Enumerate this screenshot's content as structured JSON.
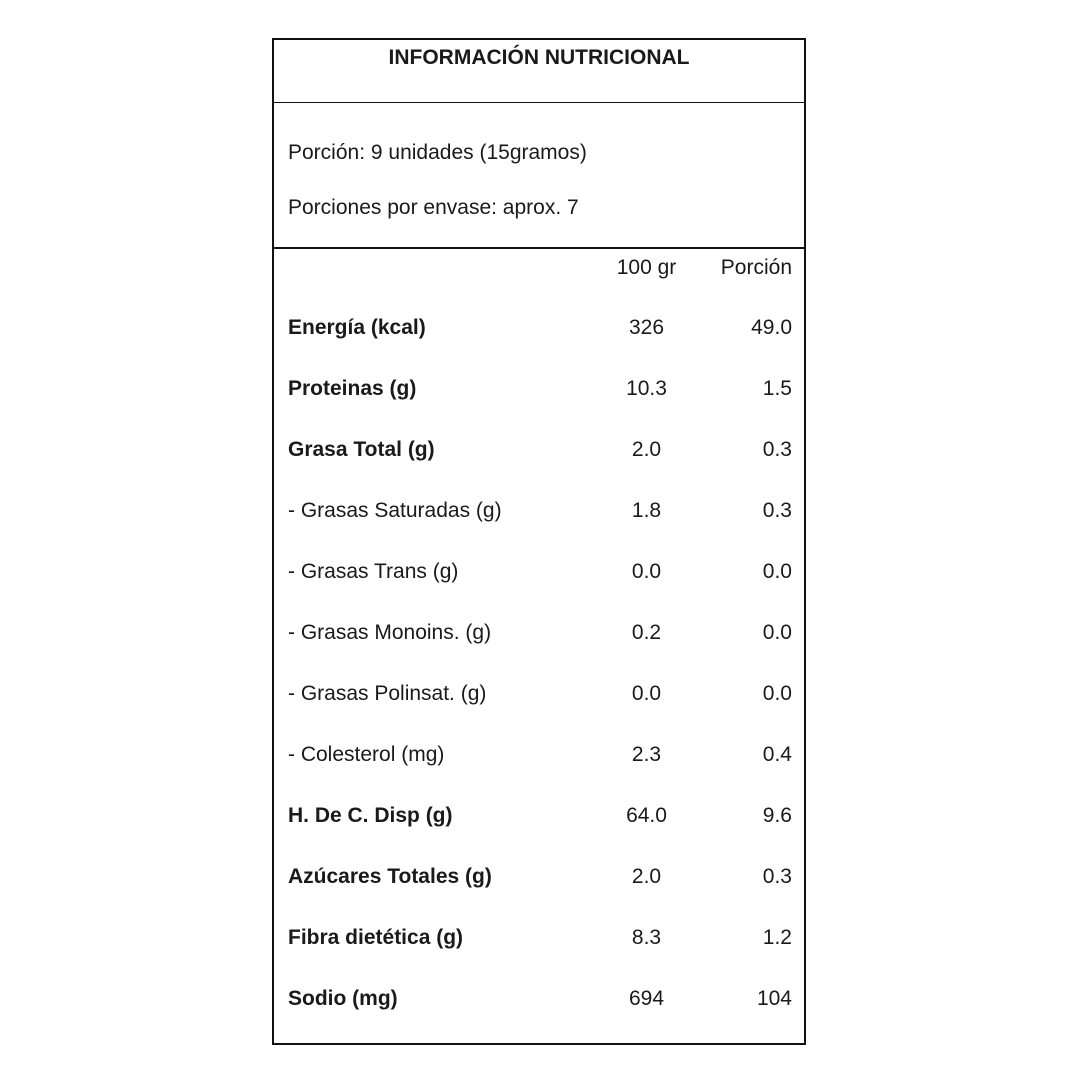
{
  "title": "INFORMACIÓN NUTRICIONAL",
  "serving": "Porción: 9 unidades (15gramos)",
  "servings_per_container": "Porciones por envase: aprox. 7",
  "columns": [
    "100 gr",
    "Porción"
  ],
  "rows": [
    {
      "name": "Energía (kcal)",
      "bold": true,
      "per100": "326",
      "portion": "49.0"
    },
    {
      "name": "Proteinas (g)",
      "bold": true,
      "per100": "10.3",
      "portion": "1.5"
    },
    {
      "name": "Grasa Total (g)",
      "bold": true,
      "per100": "2.0",
      "portion": "0.3"
    },
    {
      "name": "- Grasas Saturadas (g)",
      "bold": false,
      "per100": "1.8",
      "portion": "0.3"
    },
    {
      "name": "- Grasas Trans (g)",
      "bold": false,
      "per100": "0.0",
      "portion": "0.0"
    },
    {
      "name": "- Grasas Monoins. (g)",
      "bold": false,
      "per100": "0.2",
      "portion": "0.0"
    },
    {
      "name": "- Grasas Polinsat. (g)",
      "bold": false,
      "per100": "0.0",
      "portion": "0.0"
    },
    {
      "name": "- Colesterol (mg)",
      "bold": false,
      "per100": "2.3",
      "portion": "0.4"
    },
    {
      "name": "H. De C. Disp (g)",
      "bold": true,
      "per100": "64.0",
      "portion": "9.6"
    },
    {
      "name": "Azúcares Totales (g)",
      "bold": true,
      "per100": "2.0",
      "portion": "0.3"
    },
    {
      "name": "Fibra dietética (g)",
      "bold": true,
      "per100": "8.3",
      "portion": "1.2"
    },
    {
      "name": "Sodio (mg)",
      "bold": true,
      "per100": "694",
      "portion": "104"
    }
  ]
}
